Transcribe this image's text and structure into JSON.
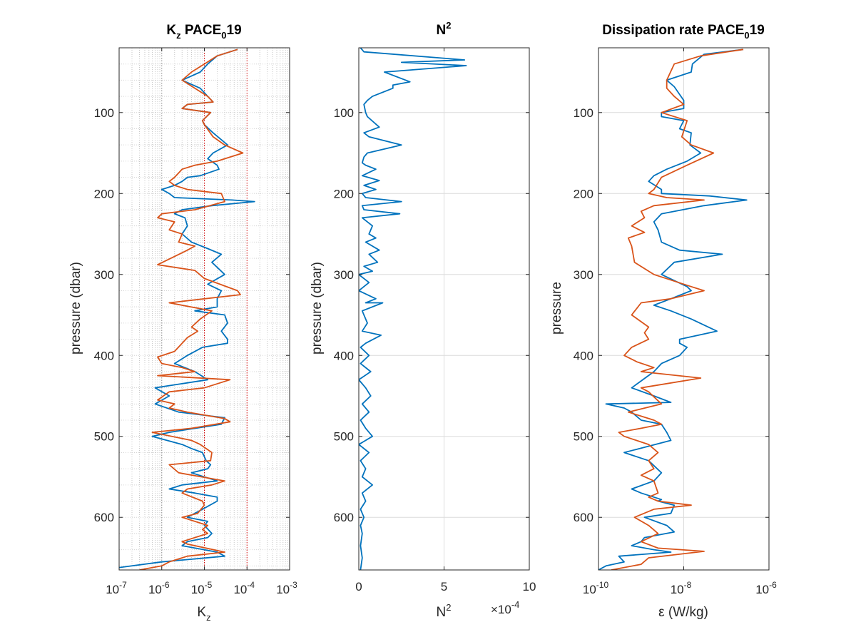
{
  "chart_data": [
    {
      "type": "line",
      "title": "K",
      "title_sub": "z",
      "title_rest": " PACE",
      "title_sub2": "0",
      "title_end": "19",
      "xlabel": "K",
      "xlabel_sub": "z",
      "ylabel": "pressure (dbar)",
      "xscale": "log",
      "xlim": [
        1e-07,
        0.001
      ],
      "ylim": [
        20,
        665
      ],
      "y_reversed": true,
      "xticks": [
        "10",
        "10",
        "10",
        "10",
        "10"
      ],
      "xtick_exponents": [
        "-7",
        "-6",
        "-5",
        "-4",
        "-3"
      ],
      "yticks": [
        100,
        200,
        300,
        400,
        500,
        600
      ],
      "reference_lines": [
        1e-06,
        1e-05,
        0.0001
      ],
      "reference_colors": [
        "#8c8c8c",
        "#cc0000",
        "#cc0000"
      ],
      "grid": "minor dotted",
      "series": [
        {
          "color": "#0072BD",
          "x": [
            6e-05,
            2e-05,
            1.2e-05,
            8e-06,
            3e-06,
            8e-06,
            1.2e-05,
            1.6e-05,
            4e-06,
            3e-06,
            1.4e-05,
            9e-06,
            1e-05,
            1.6e-05,
            3.5e-05,
            1.6e-05,
            1.2e-05,
            2e-05,
            2.2e-05,
            8e-06,
            4e-06,
            3e-06,
            2e-06,
            1e-06,
            1.5e-06,
            2e-06,
            4.5e-05,
            0.00015,
            1.5e-05,
            3e-06,
            2e-06,
            3.5e-06,
            4e-06,
            3e-06,
            5e-06,
            1.2e-05,
            2.5e-05,
            1.5e-05,
            3e-05,
            1.2e-05,
            2.5e-05,
            2e-05,
            2e-05,
            6e-06,
            3e-05,
            3.5e-05,
            2.5e-05,
            3.5e-05,
            3.5e-05,
            9e-06,
            4e-06,
            2e-06,
            6e-06,
            1.2e-05,
            7e-07,
            1.5e-06,
            7e-07,
            2.5e-06,
            3e-05,
            2.5e-05,
            1.5e-06,
            6e-07,
            3e-06,
            5e-06,
            9e-06,
            1.1e-05,
            1.4e-05,
            1.2e-05,
            5e-06,
            2e-05,
            3e-06,
            1.5e-06,
            6e-06,
            2e-05,
            2e-05,
            9e-06,
            4e-06,
            1.2e-05,
            1e-05,
            1.5e-05,
            1.2e-05,
            4e-06,
            3e-06,
            2e-05,
            3e-05,
            1e-06,
            1e-07
          ],
          "y": [
            22,
            30,
            40,
            50,
            60,
            70,
            80,
            87,
            90,
            95,
            100,
            110,
            115,
            125,
            140,
            150,
            157,
            165,
            170,
            178,
            180,
            185,
            190,
            195,
            200,
            205,
            208,
            210,
            215,
            220,
            225,
            230,
            240,
            250,
            260,
            268,
            275,
            285,
            300,
            312,
            320,
            330,
            340,
            345,
            350,
            360,
            370,
            380,
            385,
            390,
            400,
            410,
            420,
            430,
            440,
            450,
            460,
            470,
            477,
            485,
            495,
            500,
            510,
            515,
            520,
            530,
            535,
            540,
            545,
            555,
            560,
            565,
            570,
            575,
            580,
            590,
            600,
            605,
            610,
            620,
            625,
            630,
            635,
            643,
            648,
            655,
            662
          ]
        },
        {
          "color": "#D95319",
          "x": [
            6e-05,
            2e-05,
            1e-05,
            5e-06,
            3e-06,
            6e-06,
            1.2e-05,
            1.6e-05,
            4e-06,
            3e-06,
            1.4e-05,
            9e-06,
            1e-05,
            1.6e-05,
            3e-05,
            8e-05,
            2e-05,
            6e-06,
            3e-06,
            2e-06,
            1.5e-06,
            2e-06,
            4e-06,
            2.5e-05,
            3e-05,
            6e-06,
            1e-06,
            8e-07,
            2e-06,
            1.5e-06,
            3e-06,
            2.5e-06,
            6e-06,
            4e-06,
            8e-07,
            6e-06,
            1e-05,
            6e-05,
            7e-05,
            1.5e-06,
            1.5e-05,
            8e-06,
            5e-06,
            7e-06,
            4e-06,
            3e-06,
            2e-06,
            8e-07,
            1e-06,
            3e-06,
            6e-06,
            8e-07,
            4e-05,
            1e-05,
            1.5e-06,
            8e-07,
            2e-06,
            1.5e-06,
            4e-06,
            3e-05,
            4e-05,
            5e-06,
            6e-07,
            5e-06,
            8e-06,
            1.5e-05,
            1.4e-05,
            1.5e-06,
            2.5e-06,
            3e-05,
            1.5e-05,
            4e-06,
            3e-06,
            9e-06,
            1e-05,
            7e-06,
            3e-06,
            1.2e-05,
            9e-06,
            1.2e-05,
            3e-06,
            4e-06,
            3e-05,
            4e-06,
            1.5e-06,
            1e-06,
            3e-07
          ],
          "y": [
            22,
            30,
            40,
            50,
            60,
            70,
            80,
            87,
            90,
            95,
            100,
            110,
            115,
            130,
            140,
            150,
            160,
            165,
            170,
            180,
            185,
            190,
            195,
            200,
            210,
            220,
            225,
            230,
            235,
            245,
            250,
            260,
            265,
            270,
            288,
            295,
            305,
            320,
            325,
            335,
            345,
            355,
            365,
            370,
            378,
            385,
            395,
            402,
            410,
            415,
            420,
            425,
            430,
            440,
            445,
            455,
            460,
            465,
            470,
            478,
            482,
            490,
            495,
            505,
            510,
            520,
            530,
            535,
            545,
            555,
            560,
            565,
            570,
            580,
            585,
            595,
            600,
            610,
            615,
            620,
            630,
            633,
            643,
            648,
            655,
            660,
            665
          ]
        }
      ]
    },
    {
      "type": "line",
      "title": "N",
      "title_sup": "2",
      "xlabel": "N",
      "xlabel_sup": "2",
      "exponent_label": "×10",
      "exponent_power": "-4",
      "ylabel": "pressure (dbar)",
      "xlim": [
        0,
        10
      ],
      "ylim": [
        20,
        665
      ],
      "y_reversed": true,
      "xticks": [
        0,
        5,
        10
      ],
      "yticks": [
        100,
        200,
        300,
        400,
        500,
        600
      ],
      "grid": "on",
      "series": [
        {
          "color": "#0072BD",
          "x": [
            0.1,
            0.3,
            6.2,
            2.5,
            6.3,
            1.5,
            3,
            2,
            2,
            0.8,
            0.5,
            0.3,
            0.4,
            0.5,
            1.2,
            0.3,
            0.6,
            2.5,
            0.5,
            0.3,
            0.2,
            0.4,
            1,
            0.2,
            1.2,
            0.3,
            1,
            0.2,
            0.4,
            2.5,
            0.2,
            0.3,
            2.4,
            0.2,
            0.8,
            0.6,
            1,
            0.4,
            1.2,
            0.6,
            1.1,
            0.3,
            0.8,
            0,
            0.6,
            0,
            1,
            0.4,
            1.4,
            0.2,
            0.5,
            0.2,
            1.3,
            0.4,
            0.1,
            0.6,
            0.1,
            0.7,
            0,
            0.4,
            0.7,
            0.2,
            0.6,
            0.1,
            0.4,
            0.8,
            0,
            0.6,
            0.1,
            0.4,
            0.2,
            0.8,
            0.2,
            0.4,
            0.1,
            0.3,
            0.1,
            0.2,
            0.1,
            0.2,
            0.1
          ],
          "y": [
            20,
            25,
            35,
            38,
            42,
            50,
            62,
            66,
            70,
            80,
            85,
            90,
            100,
            105,
            118,
            125,
            130,
            140,
            150,
            155,
            162,
            165,
            170,
            178,
            184,
            190,
            195,
            200,
            205,
            210,
            215,
            220,
            225,
            230,
            240,
            250,
            255,
            260,
            270,
            275,
            285,
            290,
            296,
            300,
            310,
            320,
            330,
            335,
            335,
            345,
            360,
            370,
            375,
            385,
            390,
            400,
            410,
            420,
            430,
            440,
            450,
            460,
            470,
            480,
            490,
            500,
            510,
            520,
            530,
            540,
            550,
            560,
            570,
            580,
            590,
            600,
            610,
            620,
            635,
            650,
            665
          ]
        }
      ]
    },
    {
      "type": "line",
      "title": "Dissipation rate PACE",
      "title_sub": "0",
      "title_end": "19",
      "xlabel": "ε (W/kg)",
      "ylabel": "pressure",
      "xscale": "log",
      "xlim": [
        1e-10,
        1e-06
      ],
      "ylim": [
        20,
        665
      ],
      "y_reversed": true,
      "xticks": [
        "10",
        "10",
        "10"
      ],
      "xtick_exponents": [
        "-10",
        "-8",
        "-6"
      ],
      "yticks": [
        100,
        200,
        300,
        400,
        500,
        600
      ],
      "grid": "on",
      "series": [
        {
          "color": "#0072BD",
          "x": [
            2.5e-07,
            3e-08,
            1.6e-08,
            1.5e-08,
            4e-09,
            6e-09,
            1e-08,
            1e-08,
            3e-09,
            3e-09,
            1e-08,
            8e-09,
            1.5e-08,
            1.4e-08,
            2.5e-08,
            1.2e-08,
            4e-09,
            2e-09,
            1.5e-09,
            3e-09,
            3e-09,
            4e-08,
            3e-07,
            3e-08,
            3e-09,
            2e-09,
            2.5e-09,
            3e-09,
            8e-09,
            8e-08,
            6e-09,
            3e-09,
            1.2e-08,
            1.5e-08,
            5e-09,
            2e-09,
            5e-09,
            1.5e-08,
            6e-08,
            8e-09,
            8e-09,
            1.2e-08,
            8e-09,
            3e-09,
            2e-09,
            6e-10,
            2e-09,
            5e-09,
            1.5e-10,
            4e-10,
            6e-10,
            1e-09,
            3e-09,
            4e-09,
            5e-09,
            4e-10,
            1.5e-09,
            3e-09,
            2e-09,
            6e-10,
            1e-09,
            3e-09,
            2.5e-09,
            6e-09,
            5e-09,
            1.2e-09,
            4e-09,
            6e-09,
            1.2e-09,
            1e-09,
            6e-10,
            2e-09,
            5e-09,
            3e-10,
            4e-10,
            1.5e-10,
            1e-10
          ],
          "y": [
            22,
            28,
            40,
            50,
            60,
            68,
            85,
            95,
            100,
            105,
            110,
            120,
            125,
            140,
            150,
            160,
            170,
            178,
            185,
            195,
            200,
            203,
            208,
            215,
            225,
            235,
            245,
            260,
            270,
            275,
            285,
            300,
            315,
            320,
            330,
            338,
            345,
            355,
            370,
            380,
            385,
            390,
            400,
            410,
            420,
            440,
            450,
            458,
            460,
            465,
            470,
            480,
            485,
            495,
            505,
            520,
            530,
            545,
            555,
            565,
            570,
            578,
            580,
            585,
            595,
            600,
            610,
            618,
            625,
            630,
            635,
            640,
            643,
            648,
            655,
            660,
            665
          ]
        },
        {
          "color": "#D95319",
          "x": [
            2.5e-07,
            2.5e-08,
            6e-09,
            4e-09,
            4e-09,
            6e-09,
            1e-08,
            3e-09,
            1.2e-08,
            9e-09,
            1.5e-08,
            5e-08,
            1.2e-08,
            3e-09,
            2e-09,
            1.5e-09,
            4e-09,
            3e-08,
            2e-09,
            1e-09,
            1.2e-09,
            6e-10,
            1.2e-09,
            5e-10,
            6e-10,
            7e-10,
            2e-09,
            1.5e-08,
            3e-08,
            5e-09,
            1e-09,
            6e-10,
            1.5e-09,
            1.2e-09,
            1.5e-09,
            6e-10,
            4e-10,
            8e-10,
            2e-09,
            1e-09,
            2.5e-08,
            1e-09,
            1.5e-09,
            3e-09,
            5e-10,
            2e-09,
            3e-09,
            1e-09,
            3e-10,
            4e-10,
            1.5e-09,
            2.5e-09,
            1.5e-09,
            2e-09,
            1e-09,
            2e-09,
            2.5e-09,
            1.5e-09,
            2.5e-09,
            1.5e-08,
            2e-09,
            7e-10,
            1.5e-09,
            2.5e-09,
            1e-09,
            2.5e-09,
            3e-08,
            1.5e-09,
            1e-09,
            2e-10
          ],
          "y": [
            22,
            30,
            40,
            60,
            70,
            80,
            90,
            100,
            110,
            130,
            140,
            150,
            165,
            180,
            195,
            200,
            205,
            208,
            215,
            222,
            230,
            240,
            248,
            255,
            265,
            285,
            300,
            315,
            320,
            330,
            335,
            350,
            365,
            372,
            380,
            390,
            400,
            408,
            415,
            420,
            428,
            440,
            445,
            460,
            470,
            480,
            485,
            490,
            495,
            500,
            510,
            520,
            530,
            540,
            548,
            555,
            570,
            575,
            580,
            585,
            590,
            600,
            610,
            620,
            630,
            638,
            642,
            650,
            658,
            665
          ]
        }
      ]
    }
  ]
}
